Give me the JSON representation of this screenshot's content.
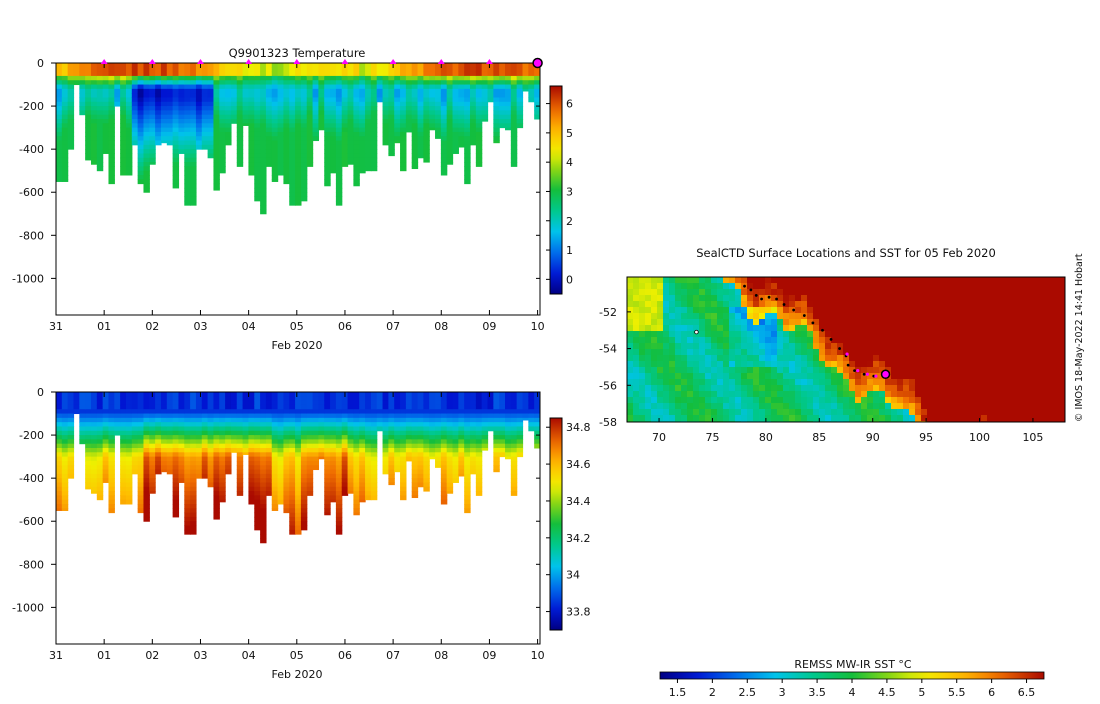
{
  "credit": "© IMOS 18-May-2022 14:41 Hobart",
  "colors": {
    "panel_background": "#ffffff",
    "axis": "#000000",
    "marker_magenta": "#ff00ff",
    "track_black": "#000000"
  },
  "chart_data": [
    {
      "id": "temperature-section",
      "type": "heatmap",
      "title": "Q9901323  Temperature",
      "xlabel": "Feb 2020",
      "ylabel": "",
      "x_ticks": [
        "31",
        "01",
        "02",
        "03",
        "04",
        "05",
        "06",
        "07",
        "08",
        "09",
        "10"
      ],
      "x_range_days": [
        0,
        10.05
      ],
      "y_ticks": [
        0,
        -200,
        -400,
        -600,
        -800,
        -1000
      ],
      "ylim": [
        -1170,
        0
      ],
      "colorbar": {
        "ticks": [
          6,
          5,
          4,
          3,
          2,
          1,
          0
        ],
        "range": [
          -0.5,
          6.6
        ]
      },
      "profile_depths_m": [
        550,
        550,
        400,
        100,
        240,
        450,
        470,
        500,
        420,
        560,
        200,
        520,
        520,
        380,
        560,
        600,
        470,
        380,
        370,
        380,
        580,
        420,
        660,
        660,
        400,
        400,
        440,
        590,
        510,
        380,
        280,
        480,
        290,
        520,
        640,
        700,
        480,
        550,
        520,
        560,
        660,
        660,
        640,
        480,
        360,
        310,
        570,
        510,
        660,
        480,
        470,
        570,
        510,
        500,
        500,
        180,
        380,
        430,
        370,
        500,
        320,
        490,
        440,
        460,
        310,
        350,
        520,
        470,
        420,
        390,
        560,
        380,
        480,
        270,
        180,
        370,
        300,
        310,
        480,
        300,
        130,
        180,
        260
      ],
      "surface_markers_day": [
        1,
        2,
        3,
        4,
        5,
        6,
        7,
        8,
        9,
        10
      ],
      "current_position_day": 10
    },
    {
      "id": "salinity-section",
      "type": "heatmap",
      "title": "",
      "xlabel": "Feb 2020",
      "ylabel": "",
      "x_ticks": [
        "31",
        "01",
        "02",
        "03",
        "04",
        "05",
        "06",
        "07",
        "08",
        "09",
        "10"
      ],
      "x_range_days": [
        0,
        10.05
      ],
      "y_ticks": [
        0,
        -200,
        -400,
        -600,
        -800,
        -1000
      ],
      "ylim": [
        -1170,
        0
      ],
      "colorbar": {
        "ticks": [
          34.8,
          34.6,
          34.4,
          34.2,
          34,
          33.8
        ],
        "range": [
          33.7,
          34.85
        ]
      }
    },
    {
      "id": "surface-map",
      "type": "heatmap",
      "title": "SealCTD Surface Locations and SST for 05 Feb 2020",
      "xlabel": "",
      "ylabel": "",
      "x_ticks": [
        "70",
        "75",
        "80",
        "85",
        "90",
        "95",
        "100",
        "105"
      ],
      "xlim_lon": [
        67,
        108
      ],
      "y_ticks": [
        "-52",
        "-54",
        "-56",
        "-58"
      ],
      "ylim_lat": [
        -58,
        -50.1
      ],
      "colorbar_label": "REMSS MW-IR SST °C",
      "colorbar_ticks": [
        "1.5",
        "2",
        "2.5",
        "3",
        "3.5",
        "4",
        "4.5",
        "5",
        "5.5",
        "6",
        "6.5"
      ],
      "colorbar_range": [
        1.25,
        6.75
      ],
      "track_points": [
        {
          "lon": 78.0,
          "lat": -50.6
        },
        {
          "lon": 78.6,
          "lat": -50.8
        },
        {
          "lon": 79.1,
          "lat": -51.1
        },
        {
          "lon": 79.6,
          "lat": -51.3
        },
        {
          "lon": 80.3,
          "lat": -51.2
        },
        {
          "lon": 81.0,
          "lat": -51.3
        },
        {
          "lon": 81.7,
          "lat": -51.6
        },
        {
          "lon": 82.6,
          "lat": -51.9
        },
        {
          "lon": 83.6,
          "lat": -52.2
        },
        {
          "lon": 84.4,
          "lat": -52.6
        },
        {
          "lon": 85.3,
          "lat": -53.0
        },
        {
          "lon": 86.1,
          "lat": -53.5
        },
        {
          "lon": 86.9,
          "lat": -54.0
        },
        {
          "lon": 87.5,
          "lat": -54.4
        },
        {
          "lon": 87.7,
          "lat": -54.9
        },
        {
          "lon": 88.3,
          "lat": -55.2
        },
        {
          "lon": 89.2,
          "lat": -55.4
        },
        {
          "lon": 90.1,
          "lat": -55.5
        }
      ],
      "magenta_points": [
        {
          "lon": 87.6,
          "lat": -54.3
        },
        {
          "lon": 88.6,
          "lat": -55.2
        },
        {
          "lon": 89.5,
          "lat": -55.4
        },
        {
          "lon": 90.3,
          "lat": -55.5
        }
      ],
      "current_position": {
        "lon": 91.2,
        "lat": -55.4
      },
      "minor_marker": {
        "lon": 73.5,
        "lat": -53.1
      }
    }
  ]
}
